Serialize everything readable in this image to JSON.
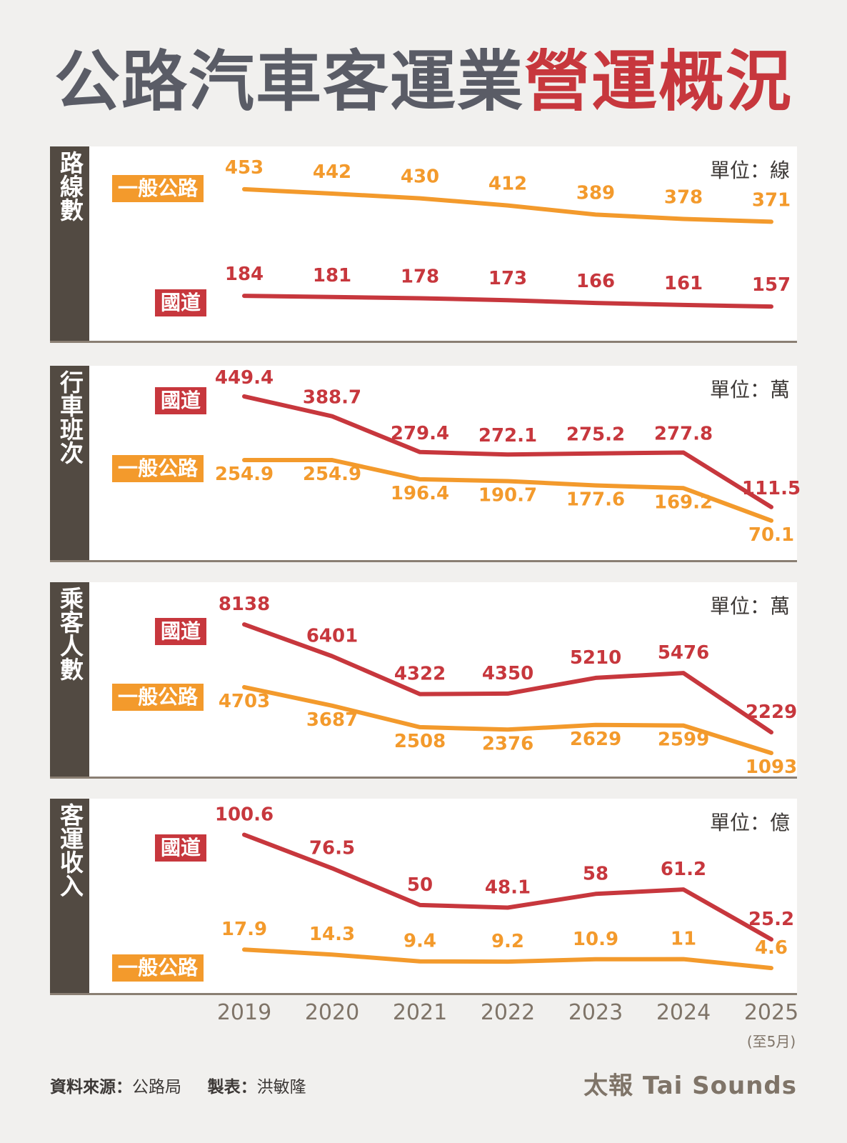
{
  "title": {
    "part1": "公路汽車客運業",
    "part2": "營運概況"
  },
  "years": [
    "2019",
    "2020",
    "2021",
    "2022",
    "2023",
    "2024",
    "2025"
  ],
  "year_note": "(至5月)",
  "footer": {
    "source_label": "資料來源：",
    "source": "公路局",
    "maker_label": "製表：",
    "maker": "洪敏隆",
    "brand": "太報 Tai Sounds"
  },
  "colors": {
    "orange": "#f39a2c",
    "red": "#c7373d",
    "label_orange": "#f39a2c",
    "label_red": "#c7373d"
  },
  "panels": [
    {
      "side_label": "路線數",
      "unit": "單位：線",
      "badges": [
        {
          "text": "一般公路",
          "color": "orange"
        },
        {
          "text": "國道",
          "color": "red"
        }
      ]
    },
    {
      "side_label": "行車班次",
      "unit": "單位：萬",
      "badges": [
        {
          "text": "國道",
          "color": "red"
        },
        {
          "text": "一般公路",
          "color": "orange"
        }
      ]
    },
    {
      "side_label": "乘客人數",
      "unit": "單位：萬",
      "badges": [
        {
          "text": "國道",
          "color": "red"
        },
        {
          "text": "一般公路",
          "color": "orange"
        }
      ]
    },
    {
      "side_label": "客運收入",
      "unit": "單位：億",
      "badges": [
        {
          "text": "國道",
          "color": "red"
        },
        {
          "text": "一般公路",
          "color": "orange"
        }
      ]
    }
  ],
  "chart_data": [
    {
      "type": "line",
      "title": "路線數",
      "x": [
        "2019",
        "2020",
        "2021",
        "2022",
        "2023",
        "2024",
        "2025"
      ],
      "series": [
        {
          "name": "一般公路",
          "values": [
            453,
            442,
            430,
            412,
            389,
            378,
            371
          ],
          "labels": [
            "453",
            "442",
            "430",
            "412",
            "389",
            "378",
            "371"
          ]
        },
        {
          "name": "國道",
          "values": [
            184,
            181,
            178,
            173,
            166,
            161,
            157
          ],
          "labels": [
            "184",
            "181",
            "178",
            "173",
            "166",
            "161",
            "157"
          ]
        }
      ]
    },
    {
      "type": "line",
      "title": "行車班次",
      "x": [
        "2019",
        "2020",
        "2021",
        "2022",
        "2023",
        "2024",
        "2025"
      ],
      "series": [
        {
          "name": "國道",
          "values": [
            449.4,
            388.7,
            279.4,
            272.1,
            275.2,
            277.8,
            111.5
          ],
          "labels": [
            "449.4",
            "388.7",
            "279.4",
            "272.1",
            "275.2",
            "277.8",
            "111.5"
          ]
        },
        {
          "name": "一般公路",
          "values": [
            254.9,
            254.9,
            196.4,
            190.7,
            177.6,
            169.2,
            70.1
          ],
          "labels": [
            "254.9",
            "254.9",
            "196.4",
            "190.7",
            "177.6",
            "169.2",
            "70.1"
          ]
        }
      ]
    },
    {
      "type": "line",
      "title": "乘客人數",
      "x": [
        "2019",
        "2020",
        "2021",
        "2022",
        "2023",
        "2024",
        "2025"
      ],
      "series": [
        {
          "name": "國道",
          "values": [
            8138,
            6401,
            4322,
            4350,
            5210,
            5476,
            2229
          ],
          "labels": [
            "8138",
            "6401",
            "4322",
            "4350",
            "5210",
            "5476",
            "2229"
          ]
        },
        {
          "name": "一般公路",
          "values": [
            4703,
            3687,
            2508,
            2376,
            2629,
            2599,
            1093
          ],
          "labels": [
            "4703",
            "3687",
            "2508",
            "2376",
            "2629",
            "2599",
            "1093"
          ]
        }
      ]
    },
    {
      "type": "line",
      "title": "客運收入",
      "x": [
        "2019",
        "2020",
        "2021",
        "2022",
        "2023",
        "2024",
        "2025"
      ],
      "series": [
        {
          "name": "國道",
          "values": [
            100.6,
            76.5,
            50,
            48.1,
            58,
            61.2,
            25.2
          ],
          "labels": [
            "100.6",
            "76.5",
            "50",
            "48.1",
            "58",
            "61.2",
            "25.2"
          ]
        },
        {
          "name": "一般公路",
          "values": [
            17.9,
            14.3,
            9.4,
            9.2,
            10.9,
            11,
            4.6
          ],
          "labels": [
            "17.9",
            "14.3",
            "9.4",
            "9.2",
            "10.9",
            "11",
            "4.6"
          ]
        }
      ]
    }
  ]
}
